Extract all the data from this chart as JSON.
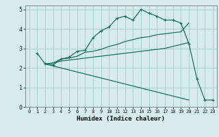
{
  "title": "",
  "xlabel": "Humidex (Indice chaleur)",
  "ylabel": "",
  "bg_color": "#d6ecea",
  "grid_color": "#a8cfc9",
  "line_color": "#1e6e65",
  "xlim": [
    -0.5,
    23.5
  ],
  "ylim": [
    0,
    5.2
  ],
  "xticks": [
    0,
    1,
    2,
    3,
    4,
    5,
    6,
    7,
    8,
    9,
    10,
    11,
    12,
    13,
    14,
    15,
    16,
    17,
    18,
    19,
    20,
    21,
    22,
    23
  ],
  "yticks": [
    0,
    1,
    2,
    3,
    4,
    5
  ],
  "series": [
    {
      "x": [
        1,
        2,
        3,
        4,
        5,
        6,
        7,
        8,
        9,
        10,
        11,
        12,
        13,
        14,
        15,
        16,
        17,
        18,
        19,
        20,
        21,
        22,
        23
      ],
      "y": [
        2.75,
        2.2,
        2.15,
        2.45,
        2.55,
        2.85,
        2.9,
        3.55,
        3.9,
        4.1,
        4.55,
        4.65,
        4.45,
        5.0,
        4.8,
        4.65,
        4.45,
        4.45,
        4.3,
        3.25,
        1.45,
        0.35,
        0.35
      ],
      "marker": true
    },
    {
      "x": [
        2,
        3,
        4,
        5,
        6,
        7,
        8,
        9,
        10,
        11,
        12,
        13,
        14,
        15,
        16,
        17,
        18,
        19,
        20
      ],
      "y": [
        2.2,
        2.25,
        2.45,
        2.5,
        2.6,
        2.8,
        2.85,
        2.95,
        3.1,
        3.2,
        3.35,
        3.45,
        3.55,
        3.6,
        3.7,
        3.75,
        3.8,
        3.85,
        4.3
      ],
      "marker": false
    },
    {
      "x": [
        2,
        3,
        4,
        5,
        6,
        7,
        8,
        9,
        10,
        11,
        12,
        13,
        14,
        15,
        16,
        17,
        18,
        19,
        20
      ],
      "y": [
        2.2,
        2.25,
        2.35,
        2.4,
        2.45,
        2.5,
        2.55,
        2.6,
        2.65,
        2.7,
        2.75,
        2.8,
        2.85,
        2.9,
        2.95,
        3.0,
        3.1,
        3.2,
        3.3
      ],
      "marker": false
    },
    {
      "x": [
        2,
        20
      ],
      "y": [
        2.2,
        0.35
      ],
      "marker": false
    }
  ]
}
